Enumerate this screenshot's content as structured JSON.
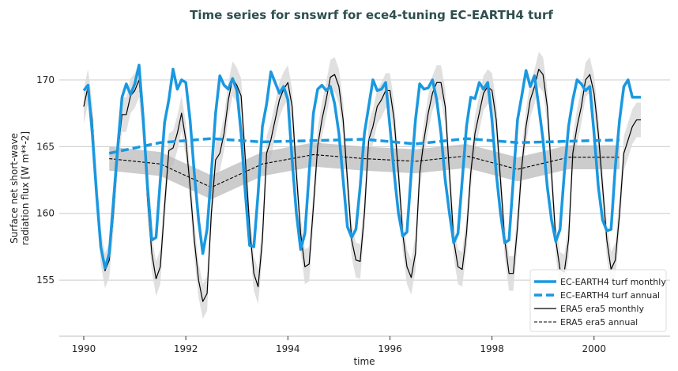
{
  "chart_data": {
    "type": "line",
    "title": "Time series for snswrf for ece4-tuning EC-EARTH4 turf",
    "xlabel": "time",
    "ylabel": [
      "Surface net short-wave",
      "radiation flux [W m**-2]"
    ],
    "xlim": [
      1989.52,
      2001.49
    ],
    "ylim": [
      150.8,
      172.9
    ],
    "xticks": [
      1990,
      1992,
      1994,
      1996,
      1998,
      2000
    ],
    "yticks": [
      155,
      160,
      165,
      170
    ],
    "grid": "horizontal",
    "legend_position": "bottom-right",
    "monthly_start": 1990,
    "annual_x": [
      1990.5,
      1991.5,
      1992.5,
      1993.5,
      1994.5,
      1995.5,
      1996.5,
      1997.5,
      1998.5,
      1999.5,
      2000.5
    ],
    "series": [
      {
        "name": "EC-EARTH4 turf monthly",
        "style": "solid-thick",
        "color": "#1a98e0",
        "values": [
          169.2,
          169.6,
          166.0,
          161.5,
          157.5,
          155.9,
          157.0,
          161.0,
          165.0,
          168.7,
          169.7,
          168.9,
          169.7,
          171.1,
          167.0,
          162.0,
          158.0,
          158.2,
          162.5,
          166.8,
          168.5,
          170.8,
          169.3,
          170.0,
          169.8,
          167.0,
          163.0,
          159.5,
          157.0,
          158.8,
          163.0,
          167.5,
          170.3,
          169.6,
          169.3,
          170.1,
          169.2,
          166.0,
          161.5,
          157.6,
          157.5,
          161.5,
          166.5,
          168.2,
          170.6,
          169.8,
          169.0,
          169.5,
          168.5,
          164.0,
          160.0,
          157.3,
          158.5,
          163.0,
          167.5,
          169.3,
          169.6,
          169.2,
          169.5,
          168.2,
          166.0,
          162.5,
          159.0,
          158.2,
          158.8,
          162.0,
          166.0,
          168.0,
          170.0,
          169.2,
          169.3,
          169.8,
          166.5,
          163.0,
          160.0,
          158.3,
          158.6,
          163.0,
          167.0,
          169.7,
          169.3,
          169.4,
          170.0,
          168.5,
          166.0,
          162.5,
          160.0,
          157.8,
          158.5,
          162.5,
          166.5,
          168.7,
          168.6,
          169.8,
          169.3,
          169.8,
          167.0,
          163.0,
          160.0,
          157.8,
          158.0,
          162.5,
          167.0,
          168.8,
          170.7,
          169.5,
          170.3,
          168.0,
          165.5,
          162.0,
          159.5,
          157.9,
          158.8,
          163.0,
          166.5,
          168.5,
          170.0,
          169.7,
          169.2,
          169.5,
          166.0,
          162.0,
          159.5,
          158.7,
          158.8,
          163.5,
          167.0,
          169.5,
          170.0,
          168.7,
          168.7,
          168.7
        ]
      },
      {
        "name": "EC-EARTH4 turf annual",
        "style": "dashed-thick",
        "color": "#1a98e0",
        "values": [
          164.5,
          165.3,
          165.6,
          165.35,
          165.45,
          165.55,
          165.2,
          165.6,
          165.3,
          165.4,
          165.5
        ]
      },
      {
        "name": "ERA5 era5 monthly",
        "style": "solid-thin",
        "color": "#000000",
        "spread": 1.3,
        "values": [
          168.0,
          169.5,
          167.0,
          162.0,
          157.5,
          155.7,
          156.5,
          160.0,
          164.5,
          167.4,
          167.4,
          168.8,
          169.2,
          170.0,
          166.5,
          161.0,
          157.0,
          155.1,
          156.0,
          160.5,
          164.7,
          164.9,
          166.0,
          167.5,
          165.5,
          162.0,
          158.0,
          155.0,
          153.4,
          154.0,
          160.0,
          164.0,
          164.5,
          166.0,
          168.5,
          170.1,
          169.6,
          168.8,
          164.0,
          159.0,
          155.5,
          154.5,
          158.0,
          164.5,
          165.5,
          167.0,
          168.5,
          169.3,
          169.8,
          168.0,
          163.0,
          158.5,
          156.0,
          156.2,
          160.5,
          165.0,
          167.0,
          168.5,
          170.2,
          170.4,
          169.5,
          167.0,
          162.5,
          158.0,
          156.5,
          156.4,
          160.0,
          165.5,
          166.5,
          168.0,
          168.5,
          169.2,
          169.2,
          167.0,
          163.0,
          158.5,
          156.0,
          155.2,
          157.0,
          163.0,
          165.5,
          167.5,
          169.0,
          169.8,
          169.8,
          168.0,
          163.0,
          158.0,
          156.0,
          155.8,
          158.5,
          163.0,
          166.0,
          167.5,
          169.0,
          169.5,
          169.2,
          167.0,
          162.5,
          158.0,
          155.5,
          155.5,
          159.0,
          163.5,
          166.5,
          168.5,
          169.5,
          170.8,
          170.4,
          168.0,
          163.0,
          158.0,
          155.8,
          155.6,
          158.0,
          164.5,
          166.5,
          168.0,
          170.0,
          170.4,
          169.0,
          166.0,
          162.0,
          158.0,
          155.8,
          156.5,
          160.0,
          164.5,
          165.5,
          166.5,
          167.0,
          167.0
        ]
      },
      {
        "name": "ERA5 era5 annual",
        "style": "dashed-thin",
        "color": "#000000",
        "spread": 0.9,
        "values": [
          164.1,
          163.7,
          161.95,
          163.7,
          164.4,
          164.1,
          163.9,
          164.3,
          163.3,
          164.2,
          164.2
        ]
      }
    ]
  }
}
